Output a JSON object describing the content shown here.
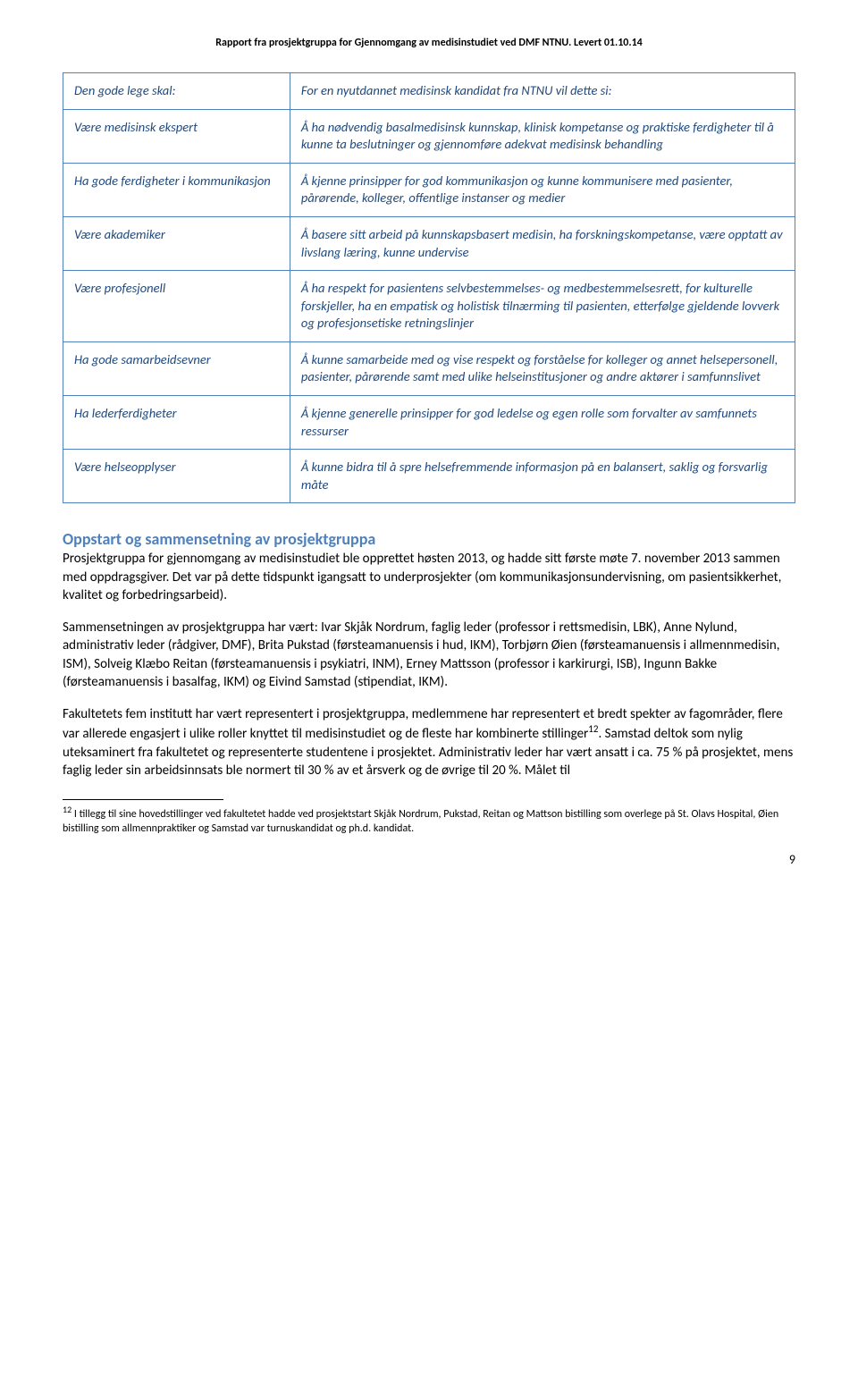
{
  "header": "Rapport fra prosjektgruppa for Gjennomgang av medisinstudiet ved DMF NTNU. Levert 01.10.14",
  "table": {
    "rows": [
      {
        "left": "Den gode lege skal:",
        "right": "For en nyutdannet medisinsk kandidat fra NTNU vil dette si:"
      },
      {
        "left": "Være medisinsk ekspert",
        "right": "Å ha nødvendig basalmedisinsk kunnskap, klinisk kompetanse og praktiske ferdigheter til å kunne ta beslutninger og gjennomføre adekvat medisinsk behandling"
      },
      {
        "left": "Ha gode ferdigheter i kommunikasjon",
        "right": "Å kjenne prinsipper for god kommunikasjon og kunne kommunisere med pasienter, pårørende, kolleger, offentlige instanser og medier"
      },
      {
        "left": "Være akademiker",
        "right": "Å basere sitt arbeid på kunnskapsbasert medisin, ha forskningskompetanse, være opptatt av livslang læring, kunne undervise"
      },
      {
        "left": "Være profesjonell",
        "right": "Å ha respekt for pasientens selvbestemmelses- og medbestemmelsesrett, for kulturelle forskjeller, ha en empatisk og holistisk tilnærming til pasienten, etterfølge gjeldende lovverk og profesjonsetiske retningslinjer"
      },
      {
        "left": "Ha gode samarbeidsevner",
        "right": "Å kunne samarbeide med og vise respekt og forståelse for kolleger og annet helsepersonell, pasienter, pårørende samt med ulike helseinstitusjoner og andre aktører i samfunnslivet"
      },
      {
        "left": "Ha lederferdigheter",
        "right": "Å kjenne generelle prinsipper for god ledelse og egen rolle som forvalter av samfunnets ressurser"
      },
      {
        "left": "Være helseopplyser",
        "right": "Å kunne bidra til å spre helsefremmende informasjon på en balansert, saklig og forsvarlig måte"
      }
    ]
  },
  "section_heading": "Oppstart og sammensetning av prosjektgruppa",
  "paragraphs": {
    "p1": "Prosjektgruppa for gjennomgang av medisinstudiet ble opprettet høsten 2013, og hadde sitt første møte 7. november 2013 sammen med oppdragsgiver. Det var på dette tidspunkt igangsatt to underprosjekter (om kommunikasjonsundervisning, om pasientsikkerhet, kvalitet og forbedringsarbeid).",
    "p2": "Sammensetningen av prosjektgruppa har vært: Ivar Skjåk Nordrum, faglig leder (professor i rettsmedisin, LBK), Anne Nylund, administrativ leder (rådgiver, DMF), Brita Pukstad (førsteamanuensis i hud, IKM), Torbjørn Øien (førsteamanuensis i allmennmedisin, ISM), Solveig Klæbo Reitan (førsteamanuensis i psykiatri, INM), Erney Mattsson (professor i karkirurgi, ISB), Ingunn Bakke (førsteamanuensis i basalfag, IKM) og Eivind Samstad (stipendiat, IKM).",
    "p3_before_ref": "Fakultetets fem institutt har vært representert i prosjektgruppa, medlemmene har representert et bredt spekter av fagområder, flere var allerede engasjert i ulike roller knyttet til medisinstudiet og de fleste har kombinerte stillinger",
    "p3_ref": "12",
    "p3_after_ref": ". Samstad deltok som nylig uteksaminert fra fakultetet og representerte studentene i prosjektet. Administrativ leder har vært ansatt i ca. 75 % på prosjektet, mens faglig leder sin arbeidsinnsats ble normert til 30 % av et årsverk og de øvrige til 20 %. Målet til"
  },
  "footnote": {
    "marker": "12",
    "text": " I tillegg til sine hovedstillinger ved fakultetet hadde ved prosjektstart Skjåk Nordrum, Pukstad, Reitan og Mattson bistilling som overlege på St. Olavs Hospital, Øien bistilling som allmennpraktiker og Samstad var turnuskandidat og ph.d. kandidat."
  },
  "page_number": "9"
}
